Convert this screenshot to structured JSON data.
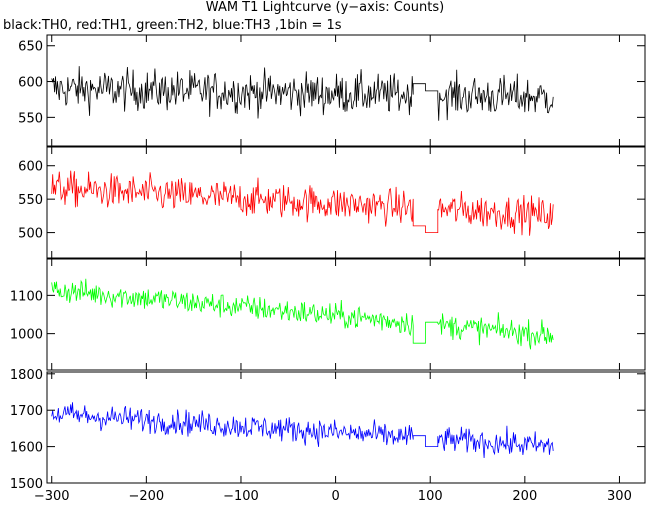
{
  "title": "WAM T1 Lightcurve (y−axis: Counts)",
  "subtitle": "black:TH0, red:TH1, green:TH2, blue:TH3 ,1bin = 1s",
  "chart_data": {
    "type": "line",
    "xlim": [
      -305,
      327
    ],
    "x_ticks": [
      -300,
      -200,
      -100,
      0,
      100,
      200,
      300
    ],
    "x_tick_labels": [
      "−300",
      "−200",
      "−100",
      "0",
      "100",
      "200",
      "300"
    ],
    "x_range": [
      -300,
      230
    ],
    "gap": [
      82,
      108
    ],
    "grid": false,
    "legend": "none",
    "panels": [
      {
        "name": "TH0",
        "color": "#000000",
        "ylim": [
          510,
          665
        ],
        "y_ticks": [
          550,
          600,
          650
        ],
        "y_tick_labels": [
          "550",
          "600",
          "650"
        ],
        "level_start": 590,
        "level_end": 578,
        "noise": 26,
        "gap_values": [
          597,
          587
        ]
      },
      {
        "name": "TH1",
        "color": "#ff0000",
        "ylim": [
          462,
          628
        ],
        "y_ticks": [
          500,
          550,
          600
        ],
        "y_tick_labels": [
          "500",
          "550",
          "600"
        ],
        "level_start": 566,
        "level_end": 526,
        "noise": 24,
        "gap_values": [
          510,
          500
        ]
      },
      {
        "name": "TH2",
        "color": "#00ff00",
        "ylim": [
          905,
          1195
        ],
        "y_ticks": [
          1000,
          1100
        ],
        "y_tick_labels": [
          "1000",
          "1100"
        ],
        "level_start": 1115,
        "level_end": 995,
        "noise": 30,
        "gap_values": [
          975,
          1030
        ]
      },
      {
        "name": "TH3",
        "color": "#0000ff",
        "ylim": [
          1500,
          1805
        ],
        "y_ticks": [
          1500,
          1600,
          1700,
          1800
        ],
        "y_tick_labels": [
          "1500",
          "1600",
          "1700",
          "1800"
        ],
        "level_start": 1690,
        "level_end": 1600,
        "noise": 32,
        "gap_values": [
          1630,
          1600
        ]
      }
    ]
  }
}
